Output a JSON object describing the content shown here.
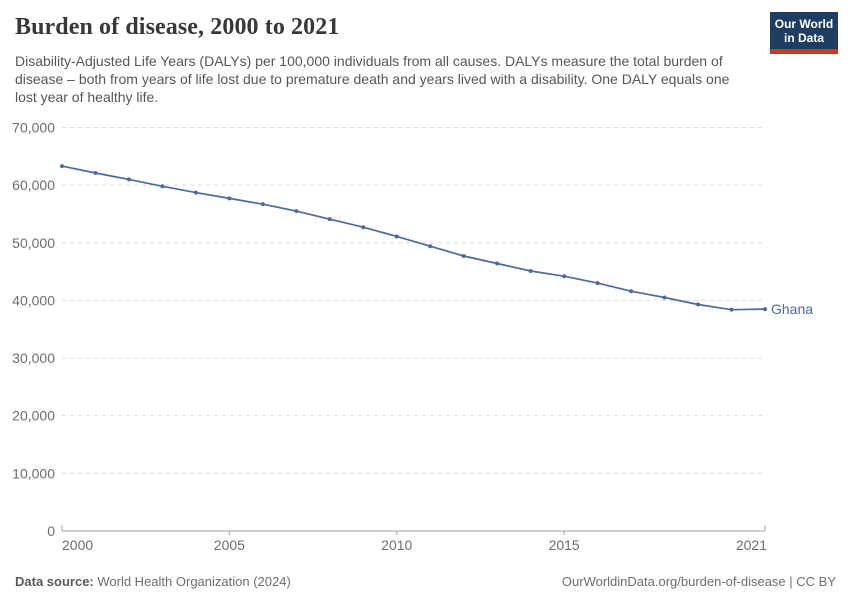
{
  "header": {
    "title": "Burden of disease, 2000 to 2021",
    "logo": {
      "line1": "Our World",
      "line2": "in Data",
      "bg_color": "#1d3d63",
      "stripe_color": "#d0342c"
    }
  },
  "subtitle": "Disability-Adjusted Life Years (DALYs) per 100,000 individuals from all causes. DALYs measure the total burden of disease – both from years of life lost due to premature death and years lived with a disability. One DALY equals one lost year of healthy life.",
  "chart_data": {
    "type": "line",
    "title": "Burden of disease, 2000 to 2021",
    "x": [
      2000,
      2001,
      2002,
      2003,
      2004,
      2005,
      2006,
      2007,
      2008,
      2009,
      2010,
      2011,
      2012,
      2013,
      2014,
      2015,
      2016,
      2017,
      2018,
      2019,
      2020,
      2021
    ],
    "series": [
      {
        "name": "Ghana",
        "color": "#4c6a9c",
        "values": [
          63300,
          62100,
          61000,
          59800,
          58700,
          57700,
          56700,
          55500,
          54100,
          52700,
          51100,
          49400,
          47700,
          46400,
          45100,
          44200,
          43000,
          41600,
          40500,
          39300,
          38400,
          38500
        ]
      }
    ],
    "xlabel": "",
    "ylabel": "",
    "ylim": [
      0,
      70000
    ],
    "yticks": [
      0,
      10000,
      20000,
      30000,
      40000,
      50000,
      60000,
      70000
    ],
    "xticks": [
      2000,
      2005,
      2010,
      2015,
      2021
    ],
    "grid": "horizontal-dashed",
    "legend_position": "end-of-line-label",
    "colors": {
      "grid": "#dcdcdc",
      "axis": "#a3a3a3",
      "tick_text": "#6e6e6e"
    }
  },
  "footer": {
    "datasource_label": "Data source:",
    "datasource_value": " World Health Organization (2024)",
    "link": "OurWorldinData.org/burden-of-disease",
    "separator": " | ",
    "license": "CC BY"
  }
}
